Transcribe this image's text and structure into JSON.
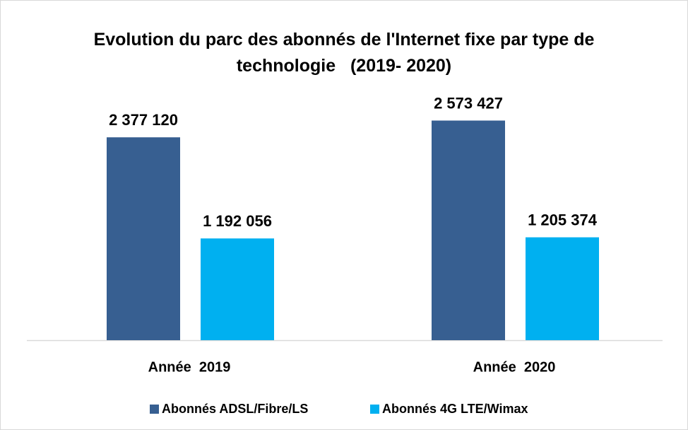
{
  "chart_data": {
    "type": "bar",
    "title": "Evolution du parc des abonnés de l'Internet fixe par type de technologie   (2019- 2020)",
    "categories": [
      "Année  2019",
      "Année  2020"
    ],
    "series": [
      {
        "name": "Abonnés ADSL/Fibre/LS",
        "color": "#375f91",
        "values": [
          2377120,
          2573427
        ],
        "value_labels": [
          "2 377 120",
          "2 573 427"
        ]
      },
      {
        "name": "Abonnés 4G LTE/Wimax",
        "color": "#00b0f0",
        "values": [
          1192056,
          1205374
        ],
        "value_labels": [
          "1 192 056",
          "1 205 374"
        ]
      }
    ],
    "ylim": [
      0,
      3000000
    ],
    "legend": "bottom"
  }
}
